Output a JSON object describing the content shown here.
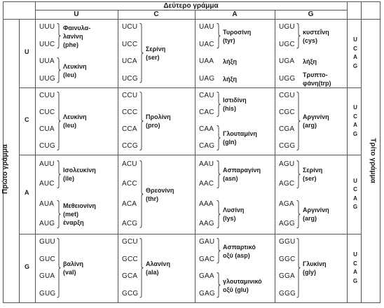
{
  "header": {
    "second_letter": "Δεύτερο γράμμα",
    "columns": [
      "U",
      "C",
      "A",
      "G"
    ]
  },
  "side": {
    "first_letter": "Πρώτο γράμμα",
    "third_letter": "Τρίτο γράμμα"
  },
  "rows": [
    {
      "first": "U",
      "third": [
        "U",
        "C",
        "A",
        "G"
      ],
      "cells": [
        {
          "codons": [
            "UUU",
            "UUC",
            "UUA",
            "UUG"
          ],
          "groups": [
            {
              "lines": [
                "Φαινυλα-",
                "λανίνη",
                "(phe)"
              ]
            },
            {
              "lines": [
                "Λευκίνη",
                "(leu)"
              ]
            }
          ]
        },
        {
          "codons": [
            "UCU",
            "UCC",
            "UCA",
            "UCG"
          ],
          "groups": [
            {
              "lines": [
                "Σερίνη",
                "(ser)"
              ]
            }
          ]
        },
        {
          "codons": [
            "UAU",
            "UAC",
            "UAA",
            "UAG"
          ],
          "groups": [
            {
              "lines": [
                "Τυροσίνη",
                "(tyr)"
              ]
            },
            {
              "lines": [
                "λήξη"
              ]
            },
            {
              "lines": [
                "λήξη"
              ]
            }
          ]
        },
        {
          "codons": [
            "UGU",
            "UGC",
            "UGA",
            "UGG"
          ],
          "groups": [
            {
              "lines": [
                "κυστεΐνη",
                "(cys)"
              ]
            },
            {
              "lines": [
                "λήξη"
              ]
            },
            {
              "lines": [
                "Τρυπτο-",
                "φάνη(trp)"
              ]
            }
          ]
        }
      ]
    },
    {
      "first": "C",
      "third": [
        "U",
        "C",
        "A",
        "G"
      ],
      "cells": [
        {
          "codons": [
            "CUU",
            "CUC",
            "CUA",
            "CUG"
          ],
          "groups": [
            {
              "lines": [
                "Λευκίνη",
                "(leu)"
              ]
            }
          ]
        },
        {
          "codons": [
            "CCU",
            "CCC",
            "CCA",
            "CCG"
          ],
          "groups": [
            {
              "lines": [
                "Προλίνη",
                "(pro)"
              ]
            }
          ]
        },
        {
          "codons": [
            "CAU",
            "CAC",
            "CAA",
            "CAG"
          ],
          "groups": [
            {
              "lines": [
                "Ιστιδίνη",
                "(his)"
              ]
            },
            {
              "lines": [
                "Γλουταμίνη",
                "(gln)"
              ]
            }
          ]
        },
        {
          "codons": [
            "CGU",
            "CGC",
            "CGA",
            "CGG"
          ],
          "groups": [
            {
              "lines": [
                "Αργινίνη",
                "(arg)"
              ]
            }
          ]
        }
      ]
    },
    {
      "first": "A",
      "third": [
        "U",
        "C",
        "A",
        "G"
      ],
      "cells": [
        {
          "codons": [
            "AUU",
            "AUC",
            "AUA",
            "AUG"
          ],
          "groups": [
            {
              "lines": [
                "Ισολευκίνη",
                "(ile)"
              ]
            },
            {
              "lines": [
                "Μεθειονίνη",
                "(met)",
                "έναρξη"
              ]
            }
          ]
        },
        {
          "codons": [
            "ACU",
            "ACC",
            "ACA",
            "ACG"
          ],
          "groups": [
            {
              "lines": [
                "Θρεονίνη",
                "(thr)"
              ]
            }
          ]
        },
        {
          "codons": [
            "AAU",
            "AAC",
            "AAA",
            "AAG"
          ],
          "groups": [
            {
              "lines": [
                "Ασπαραγίνη",
                "(asn)"
              ]
            },
            {
              "lines": [
                "Λυσίνη",
                "(lys)"
              ]
            }
          ]
        },
        {
          "codons": [
            "AGU",
            "AGC",
            "AGA",
            "AGG"
          ],
          "groups": [
            {
              "lines": [
                "Σερίνη",
                "(ser)"
              ]
            },
            {
              "lines": [
                "Αργινίνη",
                "(arg)"
              ]
            }
          ]
        }
      ]
    },
    {
      "first": "G",
      "third": [
        "U",
        "C",
        "A",
        "G"
      ],
      "cells": [
        {
          "codons": [
            "GUU",
            "GUC",
            "GUA",
            "GUG"
          ],
          "groups": [
            {
              "lines": [
                "βαλίνη",
                "(val)"
              ]
            }
          ]
        },
        {
          "codons": [
            "GCU",
            "GCC",
            "GCA",
            "GCG"
          ],
          "groups": [
            {
              "lines": [
                "Αλανίνη",
                "(ala)"
              ]
            }
          ]
        },
        {
          "codons": [
            "GAU",
            "GAC",
            "GAA",
            "GAG"
          ],
          "groups": [
            {
              "lines": [
                "Ασπαρτικό",
                "οξύ (asp)"
              ]
            },
            {
              "lines": [
                "γλουταμινικό",
                "οξύ (glu)"
              ]
            }
          ]
        },
        {
          "codons": [
            "GGU",
            "GGC",
            "GGA",
            "GGG"
          ],
          "groups": [
            {
              "lines": [
                "Γλυκίνη",
                "(gly)"
              ]
            }
          ]
        }
      ]
    }
  ]
}
